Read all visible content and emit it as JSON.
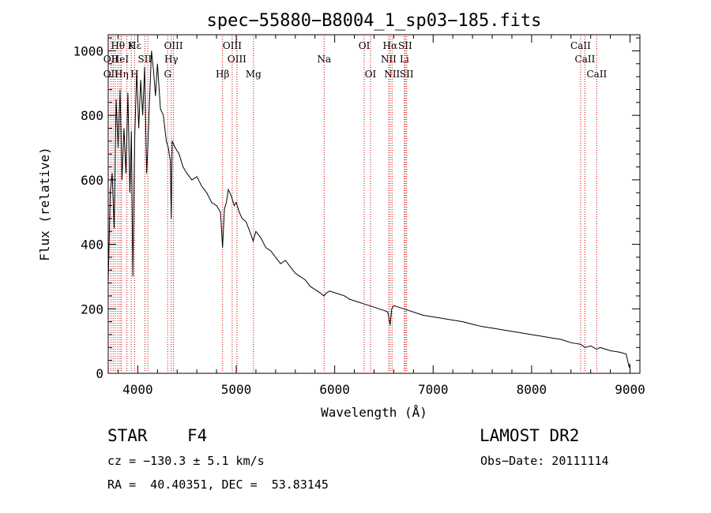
{
  "chart_data": {
    "type": "line",
    "title": "spec−55880−B8004_1_sp03−185.fits",
    "xlabel": "Wavelength (Å)",
    "ylabel": "Flux (relative)",
    "xlim": [
      3700,
      9100
    ],
    "ylim": [
      0,
      1050
    ],
    "x_ticks": [
      4000,
      5000,
      6000,
      7000,
      8000,
      9000
    ],
    "y_ticks": [
      0,
      200,
      400,
      600,
      800,
      1000
    ],
    "grid": false,
    "series": [
      {
        "x": [
          3700,
          3720,
          3740,
          3760,
          3780,
          3800,
          3820,
          3840,
          3860,
          3880,
          3900,
          3920,
          3935,
          3950,
          3968,
          3990,
          4010,
          4030,
          4050,
          4070,
          4090,
          4102,
          4120,
          4140,
          4160,
          4180,
          4200,
          4230,
          4260,
          4290,
          4310,
          4330,
          4340,
          4350,
          4380,
          4420,
          4460,
          4500,
          4550,
          4600,
          4650,
          4700,
          4750,
          4800,
          4840,
          4861,
          4880,
          4900,
          4920,
          4950,
          4980,
          5000,
          5030,
          5060,
          5100,
          5150,
          5172,
          5200,
          5250,
          5300,
          5350,
          5400,
          5450,
          5500,
          5550,
          5600,
          5650,
          5700,
          5750,
          5800,
          5850,
          5890,
          5920,
          5950,
          6000,
          6050,
          6100,
          6150,
          6200,
          6250,
          6300,
          6350,
          6400,
          6450,
          6500,
          6540,
          6563,
          6580,
          6600,
          6650,
          6700,
          6750,
          6800,
          6900,
          7000,
          7100,
          7200,
          7300,
          7400,
          7500,
          7600,
          7700,
          7800,
          7900,
          8000,
          8100,
          8200,
          8300,
          8400,
          8498,
          8542,
          8600,
          8662,
          8700,
          8800,
          8900,
          8960,
          8990,
          9000
        ],
        "y": [
          280,
          560,
          620,
          450,
          850,
          700,
          880,
          600,
          760,
          620,
          870,
          560,
          750,
          300,
          720,
          940,
          760,
          910,
          800,
          950,
          620,
          700,
          850,
          1000,
          940,
          860,
          960,
          820,
          800,
          720,
          700,
          660,
          480,
          720,
          700,
          680,
          640,
          620,
          600,
          610,
          580,
          560,
          530,
          520,
          500,
          390,
          510,
          530,
          570,
          550,
          520,
          530,
          500,
          480,
          470,
          430,
          410,
          440,
          420,
          390,
          380,
          360,
          340,
          350,
          330,
          310,
          300,
          290,
          270,
          260,
          250,
          240,
          250,
          255,
          250,
          245,
          240,
          230,
          225,
          220,
          215,
          210,
          205,
          200,
          195,
          190,
          150,
          200,
          210,
          205,
          200,
          195,
          190,
          180,
          175,
          170,
          165,
          160,
          152,
          145,
          140,
          135,
          130,
          125,
          120,
          115,
          110,
          105,
          95,
          90,
          80,
          85,
          75,
          80,
          70,
          65,
          60,
          20,
          30
        ]
      }
    ],
    "line_labels": [
      {
        "label": "Hθ",
        "x": 3798,
        "row": 1
      },
      {
        "label": "K",
        "x": 3934,
        "row": 1
      },
      {
        "label": "Hε",
        "x": 3970,
        "row": 1
      },
      {
        "label": "OIII",
        "x": 4363,
        "row": 1
      },
      {
        "label": "OIII",
        "x": 4959,
        "row": 1
      },
      {
        "label": "OI",
        "x": 6300,
        "row": 1
      },
      {
        "label": "Hα",
        "x": 6563,
        "row": 1
      },
      {
        "label": "SII",
        "x": 6716,
        "row": 1
      },
      {
        "label": "CaII",
        "x": 8498,
        "row": 1
      },
      {
        "label": "OII",
        "x": 3727,
        "row": 2
      },
      {
        "label": "HeI",
        "x": 3820,
        "row": 2
      },
      {
        "label": "SII",
        "x": 4072,
        "row": 2
      },
      {
        "label": "Hγ",
        "x": 4340,
        "row": 2
      },
      {
        "label": "OIII",
        "x": 5007,
        "row": 2
      },
      {
        "label": "NII",
        "x": 6548,
        "row": 2
      },
      {
        "label": "Li",
        "x": 6708,
        "row": 2
      },
      {
        "label": "CaII",
        "x": 8542,
        "row": 2
      },
      {
        "label": "OII",
        "x": 3727,
        "row": 3
      },
      {
        "label": "Hη",
        "x": 3835,
        "row": 3
      },
      {
        "label": "H",
        "x": 3968,
        "row": 3
      },
      {
        "label": "G",
        "x": 4304,
        "row": 3
      },
      {
        "label": "Hβ",
        "x": 4861,
        "row": 3
      },
      {
        "label": "Mg",
        "x": 5175,
        "row": 3
      },
      {
        "label": "Na",
        "x": 5893,
        "row": 2
      },
      {
        "label": "OI",
        "x": 6364,
        "row": 3
      },
      {
        "label": "NII",
        "x": 6583,
        "row": 3
      },
      {
        "label": "SII",
        "x": 6731,
        "row": 3
      },
      {
        "label": "CaII",
        "x": 8662,
        "row": 3
      }
    ],
    "marker_lines": [
      3727,
      3750,
      3771,
      3798,
      3820,
      3835,
      3889,
      3934,
      3968,
      4072,
      4102,
      4304,
      4340,
      4363,
      4861,
      4959,
      5007,
      5175,
      5893,
      6300,
      6364,
      6548,
      6563,
      6583,
      6708,
      6716,
      6731,
      8498,
      8542,
      8662
    ],
    "colors": {
      "spectrum": "#000000",
      "marker": "#cc0000",
      "axis": "#000000"
    }
  },
  "info": {
    "object_type": "STAR",
    "subclass": "F4",
    "survey": "LAMOST DR2",
    "cz": "cz = −130.3 ± 5.1 km/s",
    "obs_date": "Obs−Date: 20111114",
    "coords": "RA =  40.40351, DEC =  53.83145"
  }
}
